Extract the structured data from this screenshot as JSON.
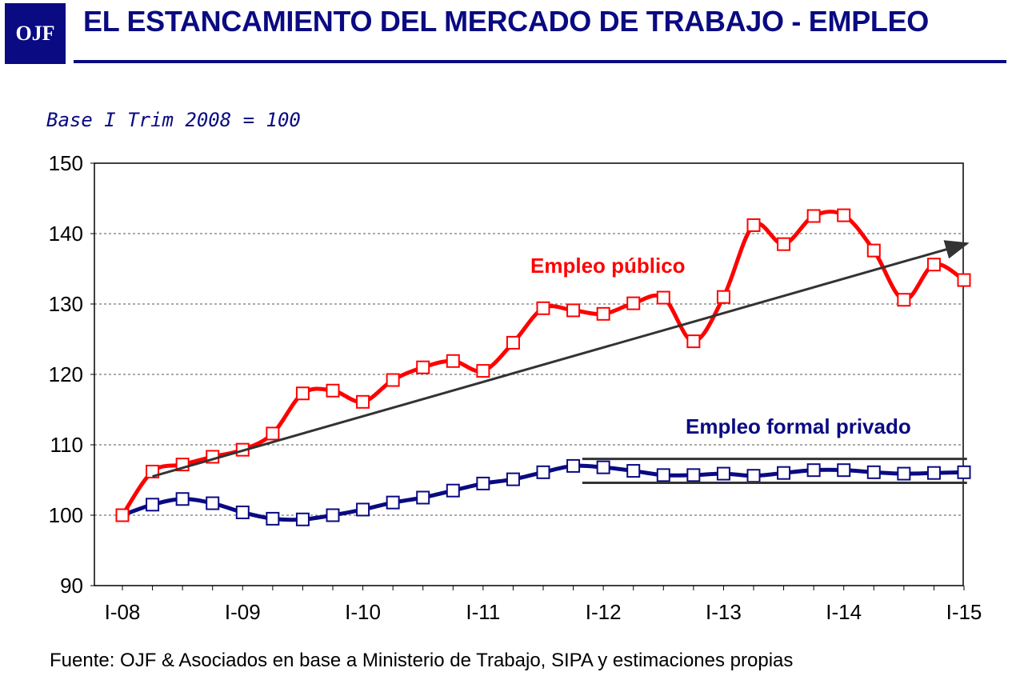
{
  "header": {
    "logo_text": "OJF",
    "title": "EL ESTANCAMIENTO DEL MERCADO DE TRABAJO - EMPLEO"
  },
  "chart_data": {
    "type": "line",
    "title": "EL ESTANCAMIENTO DEL MERCADO DE TRABAJO - EMPLEO",
    "subtitle": "Base I Trim 2008 = 100",
    "ylim": [
      90,
      150
    ],
    "yticks": [
      90,
      100,
      110,
      120,
      130,
      140,
      150
    ],
    "xtick_labels": [
      "I-08",
      "I-09",
      "I-10",
      "I-11",
      "I-12",
      "I-13",
      "I-14",
      "I-15"
    ],
    "grid": true,
    "series": [
      {
        "name": "Empleo público",
        "color": "#ff0000",
        "values": [
          100,
          106.2,
          107.2,
          108.3,
          109.3,
          111.6,
          117.3,
          117.7,
          116.1,
          119.2,
          121.0,
          121.9,
          120.5,
          124.5,
          129.4,
          129.1,
          128.6,
          130.1,
          130.9,
          124.7,
          131.0,
          141.2,
          138.5,
          142.5,
          142.6,
          137.6,
          130.6,
          135.6,
          133.4
        ]
      },
      {
        "name": "Empleo formal privado",
        "color": "#0a0a82",
        "values": [
          100,
          101.5,
          102.3,
          101.7,
          100.4,
          99.5,
          99.4,
          100.0,
          100.8,
          101.8,
          102.5,
          103.5,
          104.5,
          105.1,
          106.1,
          107.0,
          106.8,
          106.3,
          105.7,
          105.7,
          105.9,
          105.6,
          106.0,
          106.4,
          106.4,
          106.1,
          105.9,
          106.0,
          106.1
        ]
      }
    ],
    "annotations": {
      "public_label": "Empleo público",
      "private_label": "Empleo formal privado",
      "trend_line": {
        "from": [
          1,
          105.5
        ],
        "to": [
          28.1,
          138.6
        ]
      },
      "channel_upper": {
        "from": [
          15.3,
          108.0
        ],
        "to": [
          28.1,
          108.0
        ]
      },
      "channel_lower": {
        "from": [
          15.3,
          104.6
        ],
        "to": [
          28.1,
          104.6
        ]
      }
    }
  },
  "footer": {
    "source": "Fuente: OJF & Asociados en base a Ministerio de Trabajo, SIPA y estimaciones propias"
  },
  "colors": {
    "navy": "#0a0a82",
    "red": "#ff0000",
    "arrow": "#333333"
  }
}
